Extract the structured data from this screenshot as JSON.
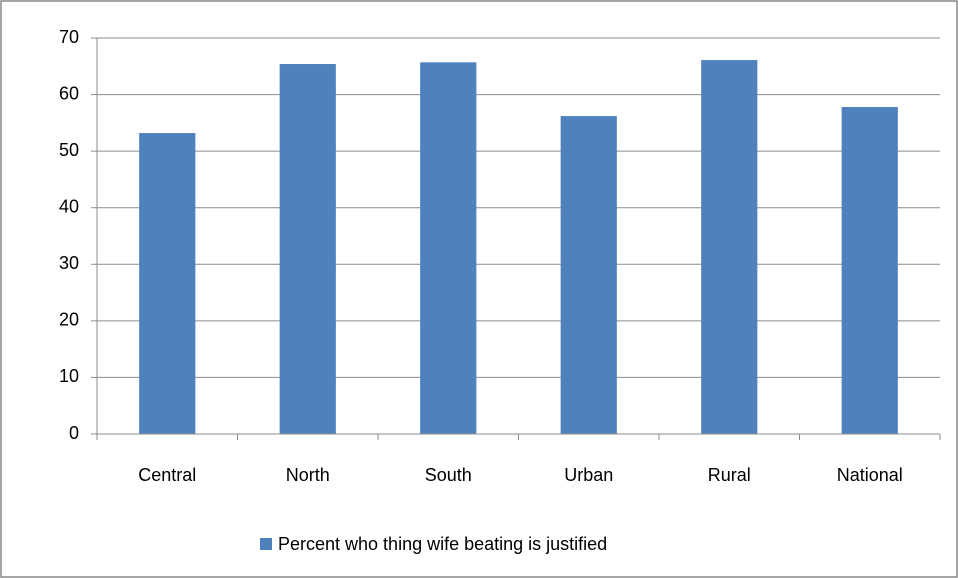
{
  "chart_data": {
    "type": "bar",
    "categories": [
      "Central",
      "North",
      "South",
      "Urban",
      "Rural",
      "National"
    ],
    "series": [
      {
        "name": "Percent who thing wife beating is justified",
        "color": "#4f81bd",
        "values": [
          53.2,
          65.4,
          65.7,
          56.2,
          66.1,
          57.8
        ]
      }
    ],
    "ylim": [
      0,
      70
    ],
    "yticks": [
      0,
      10,
      20,
      30,
      40,
      50,
      60,
      70
    ],
    "grid": true,
    "legend": "bottom"
  }
}
